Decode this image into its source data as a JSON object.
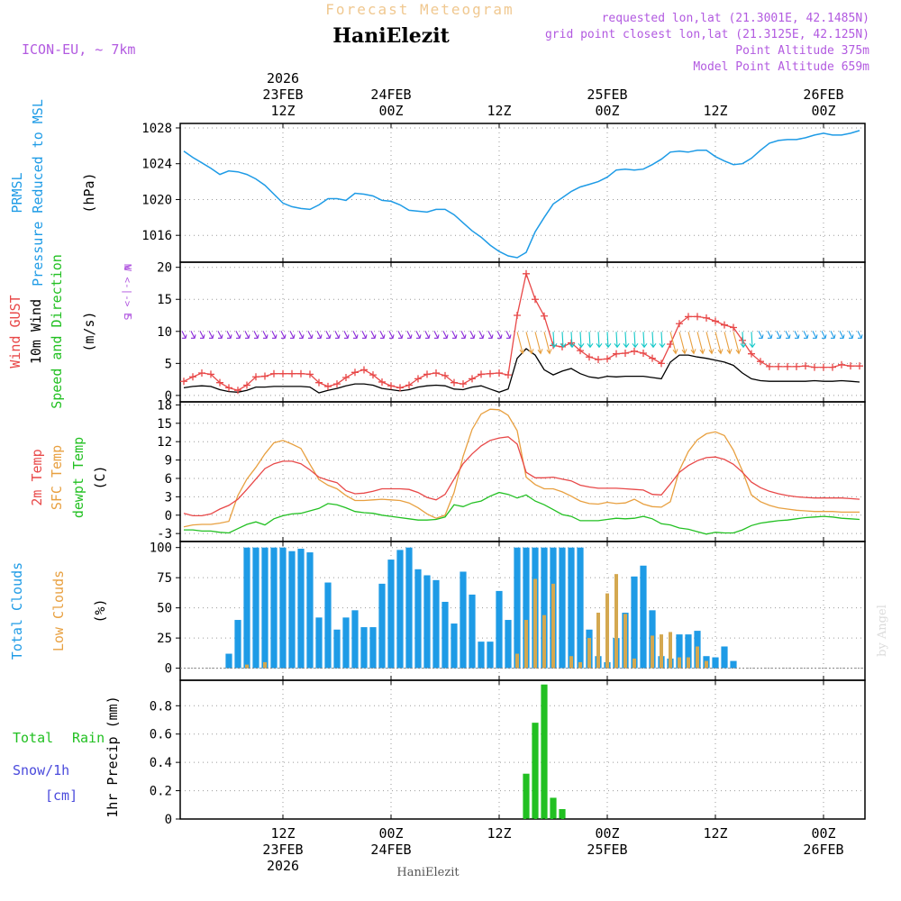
{
  "header": {
    "top_title": "Forecast Meteogram",
    "station": "HaniElezit",
    "model": "ICON-EU, ~ 7km",
    "requested": "requested lon,lat (21.3001E, 42.1485N)",
    "grid_point": "grid point closest lon,lat (21.3125E, 42.125N)",
    "point_alt": "Point Altitude 375m",
    "model_alt": "Model Point Altitude 659m",
    "footer_station": "HaniElezit",
    "watermark": "by Angel"
  },
  "colors": {
    "pressure": "#1e9be6",
    "gust": "#e84848",
    "wind": "#000000",
    "t2m": "#e84848",
    "sfc": "#e8a040",
    "dew": "#22c022",
    "total_cloud": "#1e9be6",
    "low_cloud": "#d4a850",
    "rain": "#22c022",
    "snow": "#4a4adc",
    "purple": "#b25ae0",
    "title": "#f0c890"
  },
  "time_axis": {
    "top_labels": [
      {
        "h": 12,
        "lines": [
          "2026",
          "23FEB",
          "12Z"
        ]
      },
      {
        "h": 24,
        "lines": [
          "24FEB",
          "00Z"
        ]
      },
      {
        "h": 36,
        "lines": [
          "12Z"
        ]
      },
      {
        "h": 48,
        "lines": [
          "25FEB",
          "00Z"
        ]
      },
      {
        "h": 60,
        "lines": [
          "12Z"
        ]
      },
      {
        "h": 72,
        "lines": [
          "26FEB",
          "00Z"
        ]
      }
    ],
    "bottom_labels": [
      {
        "h": 12,
        "lines": [
          "12Z",
          "23FEB",
          "2026"
        ]
      },
      {
        "h": 24,
        "lines": [
          "00Z",
          "24FEB"
        ]
      },
      {
        "h": 36,
        "lines": [
          "12Z"
        ]
      },
      {
        "h": 48,
        "lines": [
          "00Z",
          "25FEB"
        ]
      },
      {
        "h": 60,
        "lines": [
          "12Z"
        ]
      },
      {
        "h": 72,
        "lines": [
          "00Z",
          "26FEB"
        ]
      }
    ],
    "start_hour": 1,
    "end_hour": 77
  },
  "chart_data": [
    {
      "type": "line",
      "name": "pressure",
      "labels": [
        "PRMSL",
        "Pressure Reduced to MSL",
        "(hPa)"
      ],
      "ylim": [
        1013,
        1028.5
      ],
      "yticks": [
        1016,
        1020,
        1024,
        1028
      ],
      "x": [
        1,
        2,
        3,
        4,
        5,
        6,
        7,
        8,
        9,
        10,
        11,
        12,
        13,
        14,
        15,
        16,
        17,
        18,
        19,
        20,
        21,
        22,
        23,
        24,
        25,
        26,
        27,
        28,
        29,
        30,
        31,
        32,
        33,
        34,
        35,
        36,
        37,
        38,
        39,
        40,
        41,
        42,
        43,
        44,
        45,
        46,
        47,
        48,
        49,
        50,
        51,
        52,
        53,
        54,
        55,
        56,
        57,
        58,
        59,
        60,
        61,
        62,
        63,
        64,
        65,
        66,
        67,
        68,
        69,
        70,
        71,
        72,
        73,
        74,
        75,
        76
      ],
      "values": [
        1025.4,
        1024.7,
        1024.1,
        1023.5,
        1022.8,
        1023.2,
        1023.1,
        1022.8,
        1022.3,
        1021.6,
        1020.6,
        1019.6,
        1019.2,
        1019.0,
        1018.9,
        1019.4,
        1020.1,
        1020.1,
        1019.9,
        1020.7,
        1020.6,
        1020.4,
        1019.9,
        1019.8,
        1019.4,
        1018.8,
        1018.7,
        1018.6,
        1018.9,
        1018.9,
        1018.3,
        1017.4,
        1016.5,
        1015.8,
        1014.9,
        1014.2,
        1013.7,
        1013.5,
        1014.1,
        1016.4,
        1018.0,
        1019.5,
        1020.2,
        1020.9,
        1021.4,
        1021.7,
        1022.0,
        1022.5,
        1023.3,
        1023.4,
        1023.3,
        1023.4,
        1023.9,
        1024.5,
        1025.3,
        1025.4,
        1025.3,
        1025.5,
        1025.5,
        1024.8,
        1024.3,
        1023.9,
        1024.0,
        1024.6,
        1025.5,
        1026.3,
        1026.6,
        1026.7,
        1026.7,
        1026.9,
        1027.2,
        1027.4,
        1027.2,
        1027.2,
        1027.4,
        1027.7
      ]
    },
    {
      "type": "line",
      "name": "wind",
      "labels": [
        "Wind GUST",
        "10m Wind",
        "Speed and Direction",
        "(m/s)"
      ],
      "compass": [
        "N",
        "W <-|-> E",
        "S"
      ],
      "ylim": [
        -1,
        20.8
      ],
      "yticks": [
        0,
        5,
        10,
        15,
        20
      ],
      "x": [
        1,
        2,
        3,
        4,
        5,
        6,
        7,
        8,
        9,
        10,
        11,
        12,
        13,
        14,
        15,
        16,
        17,
        18,
        19,
        20,
        21,
        22,
        23,
        24,
        25,
        26,
        27,
        28,
        29,
        30,
        31,
        32,
        33,
        34,
        35,
        36,
        37,
        38,
        39,
        40,
        41,
        42,
        43,
        44,
        45,
        46,
        47,
        48,
        49,
        50,
        51,
        52,
        53,
        54,
        55,
        56,
        57,
        58,
        59,
        60,
        61,
        62,
        63,
        64,
        65,
        66,
        67,
        68,
        69,
        70,
        71,
        72,
        73,
        74,
        75,
        76
      ],
      "gust": [
        2.2,
        2.9,
        3.5,
        3.3,
        2.0,
        1.2,
        0.8,
        1.6,
        2.9,
        3.0,
        3.4,
        3.4,
        3.4,
        3.4,
        3.3,
        2.0,
        1.4,
        1.8,
        2.8,
        3.6,
        4.0,
        3.2,
        2.1,
        1.5,
        1.2,
        1.6,
        2.6,
        3.3,
        3.5,
        3.1,
        2.0,
        1.8,
        2.6,
        3.3,
        3.4,
        3.5,
        3.2,
        12.5,
        19.0,
        15.0,
        12.4,
        7.8,
        7.6,
        8.2,
        7.0,
        6.0,
        5.6,
        5.7,
        6.5,
        6.6,
        6.9,
        6.6,
        5.8,
        5.0,
        8.0,
        11.2,
        12.3,
        12.3,
        12.1,
        11.6,
        11.0,
        10.6,
        8.6,
        6.5,
        5.3,
        4.5,
        4.5,
        4.5,
        4.5,
        4.6,
        4.4,
        4.4,
        4.4,
        4.8,
        4.6,
        4.6
      ],
      "speed": [
        1.2,
        1.4,
        1.5,
        1.4,
        0.9,
        0.6,
        0.5,
        0.8,
        1.3,
        1.3,
        1.4,
        1.4,
        1.4,
        1.4,
        1.3,
        0.4,
        0.8,
        1.1,
        1.5,
        1.8,
        1.8,
        1.6,
        1.1,
        0.9,
        0.7,
        0.9,
        1.3,
        1.5,
        1.6,
        1.5,
        1.0,
        0.9,
        1.3,
        1.5,
        1.0,
        0.5,
        1.0,
        5.8,
        7.3,
        6.3,
        4.0,
        3.2,
        3.8,
        4.2,
        3.4,
        2.9,
        2.7,
        3.0,
        2.9,
        3.0,
        3.0,
        3.0,
        2.8,
        2.6,
        5.2,
        6.3,
        6.3,
        6.0,
        5.8,
        5.5,
        5.2,
        4.7,
        3.5,
        2.6,
        2.3,
        2.2,
        2.2,
        2.2,
        2.2,
        2.2,
        2.3,
        2.2,
        2.2,
        2.3,
        2.2,
        2.1
      ],
      "arrow_y": 9.5,
      "arrow_colors_sequence": [
        "purple",
        "purple",
        "purple",
        "purple",
        "purple",
        "purple",
        "purple",
        "purple",
        "purple",
        "purple",
        "purple",
        "purple",
        "purple",
        "purple",
        "purple",
        "purple",
        "purple",
        "purple",
        "purple",
        "purple",
        "purple",
        "purple",
        "purple",
        "purple",
        "purple",
        "purple",
        "purple",
        "purple",
        "purple",
        "purple",
        "purple",
        "purple",
        "purple",
        "purple",
        "purple",
        "purple",
        "purple",
        "orange",
        "orange",
        "orange",
        "orange",
        "cyan",
        "cyan",
        "cyan",
        "cyan",
        "cyan",
        "cyan",
        "cyan",
        "cyan",
        "cyan",
        "cyan",
        "cyan",
        "cyan",
        "cyan",
        "orange",
        "orange",
        "orange",
        "orange",
        "orange",
        "orange",
        "orange",
        "orange",
        "cyan",
        "cyan",
        "sky",
        "sky",
        "sky",
        "sky",
        "sky",
        "sky",
        "sky",
        "sky",
        "sky",
        "sky",
        "sky",
        "sky"
      ]
    },
    {
      "type": "line",
      "name": "temperature",
      "labels": [
        "2m Temp",
        "SFC Temp",
        "dewpt Temp",
        "(C)"
      ],
      "ylim": [
        -4.3,
        18.5
      ],
      "yticks": [
        -3,
        0,
        3,
        6,
        9,
        12,
        15,
        18
      ],
      "x": [
        1,
        2,
        3,
        4,
        5,
        6,
        7,
        8,
        9,
        10,
        11,
        12,
        13,
        14,
        15,
        16,
        17,
        18,
        19,
        20,
        21,
        22,
        23,
        24,
        25,
        26,
        27,
        28,
        29,
        30,
        31,
        32,
        33,
        34,
        35,
        36,
        37,
        38,
        39,
        40,
        41,
        42,
        43,
        44,
        45,
        46,
        47,
        48,
        49,
        50,
        51,
        52,
        53,
        54,
        55,
        56,
        57,
        58,
        59,
        60,
        61,
        62,
        63,
        64,
        65,
        66,
        67,
        68,
        69,
        70,
        71,
        72,
        73,
        74,
        75,
        76
      ],
      "t2m": [
        0.3,
        -0.1,
        -0.1,
        0.2,
        1.0,
        1.6,
        2.6,
        4.2,
        5.9,
        7.6,
        8.4,
        8.8,
        8.8,
        8.4,
        7.4,
        6.2,
        5.7,
        5.3,
        4.0,
        3.5,
        3.6,
        3.9,
        4.3,
        4.3,
        4.3,
        4.2,
        3.7,
        2.9,
        2.5,
        3.4,
        5.9,
        8.4,
        10.0,
        11.3,
        12.2,
        12.6,
        12.8,
        11.6,
        7.0,
        6.1,
        6.1,
        6.2,
        5.9,
        5.6,
        4.9,
        4.6,
        4.4,
        4.4,
        4.4,
        4.3,
        4.2,
        4.1,
        3.4,
        3.3,
        5.1,
        7.0,
        8.1,
        8.9,
        9.4,
        9.5,
        9.1,
        8.3,
        7.0,
        5.4,
        4.5,
        3.9,
        3.5,
        3.2,
        3.0,
        2.9,
        2.8,
        2.8,
        2.8,
        2.8,
        2.7,
        2.6
      ],
      "sfc": [
        -1.9,
        -1.6,
        -1.5,
        -1.5,
        -1.3,
        -1.0,
        3.2,
        5.9,
        7.8,
        10.0,
        11.8,
        12.2,
        11.6,
        10.9,
        8.3,
        5.8,
        4.9,
        4.3,
        3.2,
        2.4,
        2.4,
        2.5,
        2.6,
        2.5,
        2.4,
        2.0,
        1.2,
        0.2,
        -0.5,
        0.0,
        3.7,
        9.6,
        14.0,
        16.5,
        17.3,
        17.2,
        16.3,
        13.8,
        6.2,
        5.0,
        4.3,
        4.3,
        3.8,
        3.1,
        2.3,
        1.9,
        1.8,
        2.1,
        1.9,
        2.0,
        2.6,
        1.8,
        1.4,
        1.3,
        2.2,
        7.3,
        10.4,
        12.3,
        13.3,
        13.6,
        13.0,
        10.6,
        7.2,
        3.3,
        2.2,
        1.6,
        1.2,
        1.0,
        0.8,
        0.7,
        0.6,
        0.6,
        0.6,
        0.5,
        0.5,
        0.5
      ],
      "dew": [
        -2.4,
        -2.4,
        -2.6,
        -2.6,
        -2.8,
        -2.9,
        -2.2,
        -1.5,
        -1.1,
        -1.6,
        -0.6,
        -0.1,
        0.2,
        0.3,
        0.7,
        1.1,
        1.9,
        1.7,
        1.2,
        0.6,
        0.4,
        0.3,
        0.0,
        -0.2,
        -0.4,
        -0.6,
        -0.8,
        -0.8,
        -0.7,
        -0.3,
        1.7,
        1.4,
        2.0,
        2.3,
        3.1,
        3.7,
        3.4,
        2.8,
        3.3,
        2.3,
        1.7,
        0.9,
        0.1,
        -0.2,
        -0.9,
        -0.9,
        -0.9,
        -0.7,
        -0.5,
        -0.6,
        -0.5,
        -0.2,
        -0.6,
        -1.4,
        -1.6,
        -2.1,
        -2.3,
        -2.7,
        -3.1,
        -2.8,
        -2.9,
        -2.9,
        -2.4,
        -1.7,
        -1.3,
        -1.1,
        -0.9,
        -0.8,
        -0.6,
        -0.4,
        -0.3,
        -0.2,
        -0.3,
        -0.5,
        -0.6,
        -0.7
      ]
    },
    {
      "type": "bar",
      "name": "clouds",
      "labels": [
        "Total Clouds",
        "Low Clouds",
        "(%)"
      ],
      "ylim": [
        -10,
        105
      ],
      "yticks": [
        0,
        25,
        50,
        75,
        100
      ],
      "x": [
        1,
        2,
        3,
        4,
        5,
        6,
        7,
        8,
        9,
        10,
        11,
        12,
        13,
        14,
        15,
        16,
        17,
        18,
        19,
        20,
        21,
        22,
        23,
        24,
        25,
        26,
        27,
        28,
        29,
        30,
        31,
        32,
        33,
        34,
        35,
        36,
        37,
        38,
        39,
        40,
        41,
        42,
        43,
        44,
        45,
        46,
        47,
        48,
        49,
        50,
        51,
        52,
        53,
        54,
        55,
        56,
        57,
        58,
        59,
        60,
        61,
        62,
        63,
        64,
        65,
        66,
        67,
        68,
        69,
        70,
        71,
        72,
        73,
        74,
        75,
        76
      ],
      "total": [
        0,
        0,
        0,
        0,
        0,
        12,
        40,
        100,
        100,
        100,
        100,
        100,
        97,
        99,
        96,
        42,
        71,
        32,
        42,
        48,
        34,
        34,
        70,
        90,
        98,
        100,
        82,
        77,
        73,
        55,
        37,
        80,
        61,
        22,
        22,
        64,
        40,
        100,
        100,
        100,
        100,
        100,
        100,
        100,
        100,
        32,
        10,
        5,
        25,
        46,
        76,
        85,
        48,
        10,
        8,
        28,
        28,
        31,
        10,
        9,
        18,
        6,
        0,
        0,
        0,
        0,
        0,
        0,
        0,
        0,
        0,
        0,
        0,
        0,
        0,
        0
      ],
      "low": [
        0,
        0,
        0,
        0,
        0,
        0,
        0,
        3,
        0,
        5,
        0,
        0,
        0,
        0,
        0,
        0,
        0,
        0,
        0,
        0,
        0,
        0,
        0,
        0,
        0,
        0,
        0,
        0,
        0,
        0,
        0,
        0,
        0,
        0,
        0,
        0,
        0,
        12,
        40,
        74,
        44,
        70,
        0,
        10,
        5,
        25,
        46,
        62,
        78,
        45,
        8,
        0,
        27,
        28,
        30,
        9,
        9,
        18,
        6,
        0,
        0,
        0,
        0,
        0,
        0,
        0,
        0,
        0,
        0,
        0,
        0,
        0,
        0,
        0,
        0,
        0
      ],
      "low_x": [
        1,
        2,
        3,
        4,
        5,
        6,
        7,
        8,
        9,
        10,
        11,
        12,
        13,
        14,
        15,
        16,
        17,
        18,
        19,
        20,
        21,
        22,
        23,
        24,
        25,
        26,
        27,
        28,
        29,
        30,
        31,
        32,
        33,
        34,
        35,
        36,
        37,
        38,
        39,
        40,
        41,
        42,
        43,
        44,
        45,
        46,
        47,
        48,
        49,
        50,
        51,
        52,
        53,
        54,
        55,
        56,
        57,
        58,
        59,
        60,
        61,
        62,
        63,
        64,
        65,
        66,
        67,
        68,
        69,
        70,
        71,
        72,
        73,
        74,
        75,
        76
      ]
    },
    {
      "type": "bar",
      "name": "precip",
      "labels": [
        "Total",
        "Rain",
        "Snow/1h",
        "[cm]",
        "1hr Precip (mm)"
      ],
      "ylim": [
        0,
        0.98
      ],
      "yticks": [
        0,
        0.2,
        0.4,
        0.6,
        0.8
      ],
      "ytick_labels": [
        "0",
        "0.2",
        "0.4",
        "0.6",
        "0.8"
      ],
      "x": [
        39,
        40,
        41,
        42,
        43
      ],
      "values": [
        0.32,
        0.68,
        0.95,
        0.15,
        0.07
      ]
    }
  ]
}
